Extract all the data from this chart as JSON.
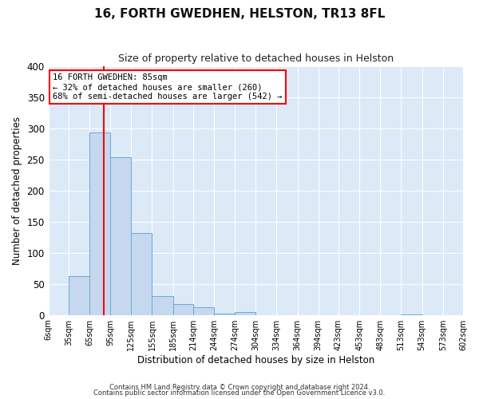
{
  "title": "16, FORTH GWEDHEN, HELSTON, TR13 8FL",
  "subtitle": "Size of property relative to detached houses in Helston",
  "xlabel": "Distribution of detached houses by size in Helston",
  "ylabel": "Number of detached properties",
  "bar_color": "#c5d8f0",
  "bar_edge_color": "#6aaad4",
  "bg_color": "#dce9f7",
  "grid_color": "#ffffff",
  "vline_x": 85,
  "vline_color": "red",
  "annotation_title": "16 FORTH GWEDHEN: 85sqm",
  "annotation_line1": "← 32% of detached houses are smaller (260)",
  "annotation_line2": "68% of semi-detached houses are larger (542) →",
  "annotation_box_color": "#ffffff",
  "annotation_box_edge": "red",
  "footnote1": "Contains HM Land Registry data © Crown copyright and database right 2024.",
  "footnote2": "Contains public sector information licensed under the Open Government Licence v3.0.",
  "bin_edges": [
    6,
    35,
    65,
    95,
    125,
    155,
    185,
    214,
    244,
    274,
    304,
    334,
    364,
    394,
    423,
    453,
    483,
    513,
    543,
    573,
    602
  ],
  "bin_counts": [
    0,
    62,
    293,
    254,
    132,
    30,
    18,
    12,
    2,
    5,
    0,
    0,
    0,
    0,
    0,
    0,
    0,
    1,
    0,
    0
  ],
  "ylim": [
    0,
    400
  ],
  "yticks": [
    0,
    50,
    100,
    150,
    200,
    250,
    300,
    350,
    400
  ],
  "fig_width": 6.0,
  "fig_height": 5.0,
  "dpi": 100
}
